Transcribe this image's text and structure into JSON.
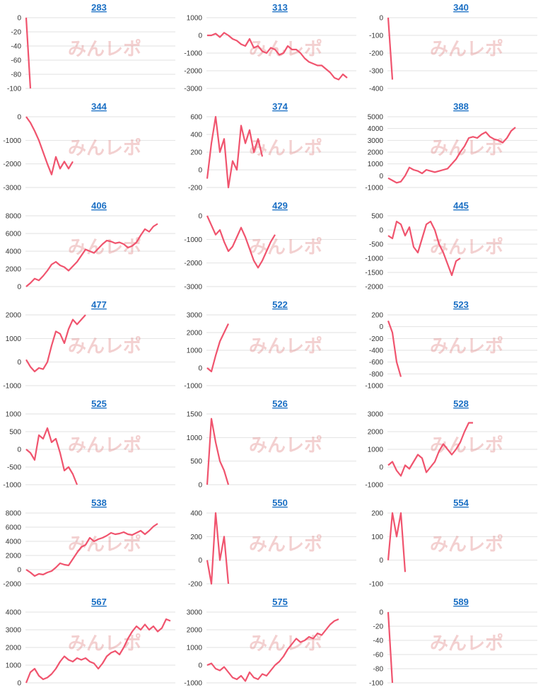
{
  "watermark": "みんレポ",
  "chart_data": [
    {
      "type": "line",
      "title": "283",
      "color": "#f0546e",
      "ylim": [
        -100,
        0
      ],
      "yticks": [
        -100,
        -80,
        -60,
        -40,
        -20,
        0
      ],
      "grid": true,
      "values": [
        0,
        -100
      ]
    },
    {
      "type": "line",
      "title": "313",
      "color": "#f0546e",
      "ylim": [
        -3000,
        1000
      ],
      "yticks": [
        -3000,
        -2000,
        -1000,
        0,
        1000
      ],
      "grid": true,
      "values": [
        0,
        0,
        100,
        -100,
        150,
        0,
        -200,
        -300,
        -500,
        -600,
        -200,
        -700,
        -600,
        -900,
        -1000,
        -700,
        -800,
        -1100,
        -1000,
        -600,
        -800,
        -800,
        -1000,
        -1300,
        -1500,
        -1600,
        -1700,
        -1700,
        -1900,
        -2100,
        -2400,
        -2500,
        -2200,
        -2400
      ]
    },
    {
      "type": "line",
      "title": "340",
      "color": "#f0546e",
      "ylim": [
        -400,
        0
      ],
      "yticks": [
        -400,
        -300,
        -200,
        -100,
        0
      ],
      "grid": true,
      "values": [
        0,
        -350
      ]
    },
    {
      "type": "line",
      "title": "344",
      "color": "#f0546e",
      "ylim": [
        -3000,
        0
      ],
      "yticks": [
        -3000,
        -2000,
        -1000,
        0
      ],
      "grid": true,
      "values": [
        0,
        -250,
        -600,
        -1000,
        -1500,
        -2000,
        -2450,
        -1700,
        -2200,
        -1900,
        -2200,
        -1900
      ]
    },
    {
      "type": "line",
      "title": "374",
      "color": "#f0546e",
      "ylim": [
        -200,
        600
      ],
      "yticks": [
        -200,
        0,
        200,
        400,
        600
      ],
      "grid": true,
      "values": [
        -100,
        300,
        600,
        200,
        350,
        -200,
        100,
        0,
        500,
        300,
        450,
        200,
        350,
        150
      ]
    },
    {
      "type": "line",
      "title": "388",
      "color": "#f0546e",
      "ylim": [
        -1000,
        5000
      ],
      "yticks": [
        -1000,
        0,
        1000,
        2000,
        3000,
        4000,
        5000
      ],
      "grid": true,
      "values": [
        -200,
        -400,
        -600,
        -500,
        0,
        700,
        500,
        400,
        200,
        500,
        400,
        300,
        400,
        500,
        600,
        1000,
        1400,
        2000,
        2500,
        3200,
        3300,
        3200,
        3500,
        3700,
        3300,
        3100,
        3000,
        2800,
        3200,
        3800,
        4100
      ]
    },
    {
      "type": "line",
      "title": "406",
      "color": "#f0546e",
      "ylim": [
        0,
        8000
      ],
      "yticks": [
        0,
        2000,
        4000,
        6000,
        8000
      ],
      "grid": true,
      "values": [
        0,
        400,
        900,
        700,
        1200,
        1800,
        2500,
        2800,
        2400,
        2200,
        1800,
        2300,
        2800,
        3500,
        4200,
        4000,
        3800,
        4300,
        4800,
        5200,
        5100,
        4900,
        5000,
        4800,
        4400,
        4600,
        5000,
        5800,
        6500,
        6200,
        6800,
        7100
      ]
    },
    {
      "type": "line",
      "title": "429",
      "color": "#f0546e",
      "ylim": [
        -3000,
        0
      ],
      "yticks": [
        -3000,
        -2000,
        -1000,
        0
      ],
      "grid": true,
      "values": [
        0,
        -400,
        -800,
        -600,
        -1100,
        -1500,
        -1300,
        -900,
        -500,
        -900,
        -1400,
        -1900,
        -2200,
        -1900,
        -1500,
        -1100,
        -800
      ]
    },
    {
      "type": "line",
      "title": "445",
      "color": "#f0546e",
      "ylim": [
        -2000,
        500
      ],
      "yticks": [
        -2000,
        -1500,
        -1000,
        -500,
        0,
        500
      ],
      "grid": true,
      "values": [
        -200,
        -300,
        300,
        200,
        -200,
        100,
        -600,
        -800,
        -300,
        200,
        300,
        0,
        -500,
        -800,
        -1200,
        -1600,
        -1100,
        -1000
      ]
    },
    {
      "type": "line",
      "title": "477",
      "color": "#f0546e",
      "ylim": [
        -1000,
        2000
      ],
      "yticks": [
        -1000,
        0,
        1000,
        2000
      ],
      "grid": true,
      "values": [
        100,
        -200,
        -400,
        -250,
        -300,
        0,
        700,
        1300,
        1200,
        800,
        1400,
        1800,
        1600,
        1800,
        2000
      ]
    },
    {
      "type": "line",
      "title": "522",
      "color": "#f0546e",
      "ylim": [
        -1000,
        3000
      ],
      "yticks": [
        -1000,
        0,
        1000,
        2000,
        3000
      ],
      "grid": true,
      "values": [
        0,
        -200,
        700,
        1500,
        2000,
        2500
      ]
    },
    {
      "type": "line",
      "title": "523",
      "color": "#f0546e",
      "ylim": [
        -1000,
        200
      ],
      "yticks": [
        -1000,
        -800,
        -600,
        -400,
        -200,
        0,
        200
      ],
      "grid": true,
      "values": [
        100,
        -100,
        -600,
        -850
      ]
    },
    {
      "type": "line",
      "title": "525",
      "color": "#f0546e",
      "ylim": [
        -1000,
        1000
      ],
      "yticks": [
        -1000,
        -500,
        0,
        500,
        1000
      ],
      "grid": true,
      "values": [
        0,
        -100,
        -300,
        400,
        300,
        600,
        200,
        300,
        -100,
        -600,
        -500,
        -700,
        -1000
      ]
    },
    {
      "type": "line",
      "title": "526",
      "color": "#f0546e",
      "ylim": [
        0,
        1500
      ],
      "yticks": [
        0,
        500,
        1000,
        1500
      ],
      "grid": true,
      "values": [
        0,
        1400,
        900,
        500,
        300,
        0
      ]
    },
    {
      "type": "line",
      "title": "528",
      "color": "#f0546e",
      "ylim": [
        -1000,
        3000
      ],
      "yticks": [
        -1000,
        0,
        1000,
        2000,
        3000
      ],
      "grid": true,
      "values": [
        100,
        300,
        -200,
        -500,
        100,
        -100,
        300,
        700,
        500,
        -300,
        0,
        300,
        900,
        1300,
        1000,
        700,
        1000,
        1400,
        2000,
        2500,
        2500
      ]
    },
    {
      "type": "line",
      "title": "538",
      "color": "#f0546e",
      "ylim": [
        -2000,
        8000
      ],
      "yticks": [
        -2000,
        0,
        2000,
        4000,
        6000,
        8000
      ],
      "grid": true,
      "values": [
        0,
        -400,
        -900,
        -600,
        -700,
        -400,
        -200,
        300,
        900,
        700,
        600,
        1500,
        2400,
        3200,
        3500,
        4500,
        4000,
        4300,
        4500,
        4800,
        5200,
        5000,
        5100,
        5300,
        5000,
        4900,
        5200,
        5500,
        5000,
        5500,
        6100,
        6500
      ]
    },
    {
      "type": "line",
      "title": "550",
      "color": "#f0546e",
      "ylim": [
        -200,
        400
      ],
      "yticks": [
        -200,
        0,
        200,
        400
      ],
      "grid": true,
      "values": [
        0,
        -200,
        400,
        0,
        200,
        -200
      ]
    },
    {
      "type": "line",
      "title": "554",
      "color": "#f0546e",
      "ylim": [
        -100,
        200
      ],
      "yticks": [
        -100,
        0,
        100,
        200
      ],
      "grid": true,
      "values": [
        0,
        200,
        100,
        200,
        -50
      ]
    },
    {
      "type": "line",
      "title": "567",
      "color": "#f0546e",
      "ylim": [
        0,
        4000
      ],
      "yticks": [
        0,
        1000,
        2000,
        3000,
        4000
      ],
      "grid": true,
      "values": [
        0,
        600,
        800,
        400,
        200,
        300,
        500,
        800,
        1200,
        1500,
        1300,
        1200,
        1400,
        1300,
        1400,
        1200,
        1100,
        800,
        1100,
        1500,
        1700,
        1800,
        1600,
        2000,
        2500,
        2900,
        3200,
        3000,
        3300,
        3000,
        3200,
        2900,
        3100,
        3600,
        3500
      ]
    },
    {
      "type": "line",
      "title": "575",
      "color": "#f0546e",
      "ylim": [
        -1000,
        3000
      ],
      "yticks": [
        -1000,
        0,
        1000,
        2000,
        3000
      ],
      "grid": true,
      "values": [
        0,
        100,
        -200,
        -300,
        -100,
        -400,
        -700,
        -800,
        -600,
        -900,
        -400,
        -700,
        -800,
        -500,
        -600,
        -300,
        0,
        200,
        500,
        900,
        1200,
        1500,
        1300,
        1400,
        1600,
        1500,
        1800,
        1700,
        2000,
        2300,
        2500,
        2600
      ]
    },
    {
      "type": "line",
      "title": "589",
      "color": "#f0546e",
      "ylim": [
        -100,
        0
      ],
      "yticks": [
        -100,
        -80,
        -60,
        -40,
        -20,
        0
      ],
      "grid": true,
      "values": [
        0,
        -100
      ]
    }
  ]
}
